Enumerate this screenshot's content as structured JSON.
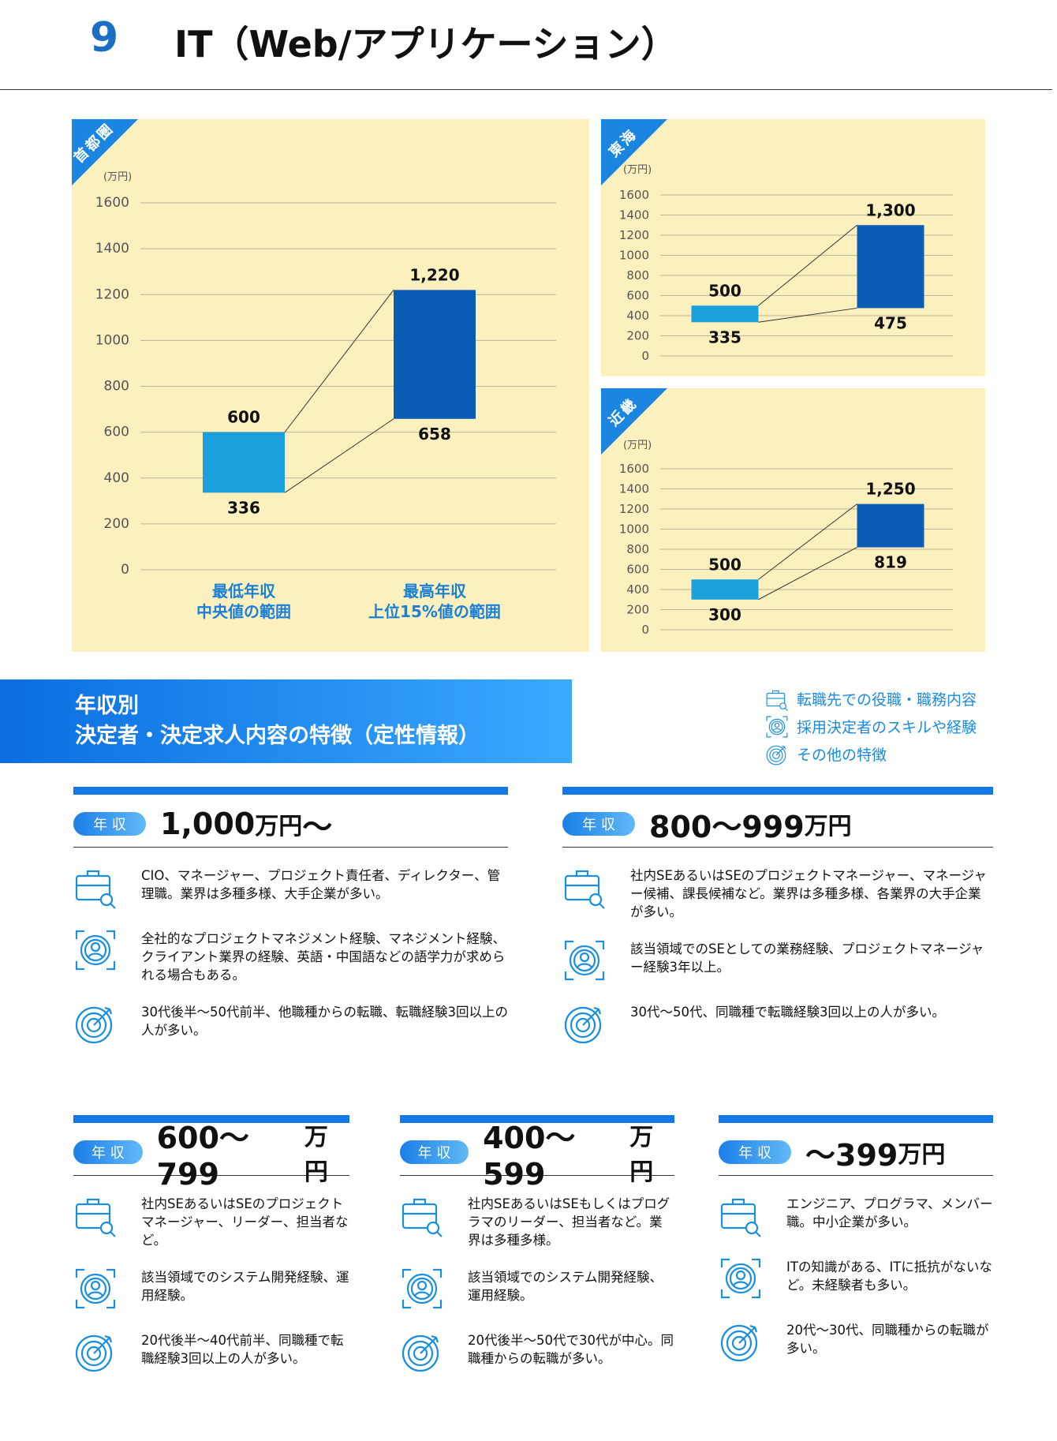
{
  "header": {
    "number": "9",
    "title": "IT（Web/アプリケーション）"
  },
  "chart_data": [
    {
      "type": "range-bar",
      "region": "首都圏",
      "y_unit": "(万円)",
      "categories": [
        "最低年収\n中央値の範囲",
        "最高年収\n上位15%値の範囲"
      ],
      "low": {
        "values": [
          336,
          658
        ]
      },
      "high": {
        "values": [
          600,
          1220
        ],
        "value_labels": [
          "600",
          "1,220"
        ]
      },
      "colors": [
        "#1aa0da",
        "#0b5cb5"
      ],
      "ylim": [
        0,
        1600
      ],
      "yticks": [
        0,
        200,
        400,
        600,
        800,
        1000,
        1200,
        1400,
        1600
      ],
      "grid": true
    },
    {
      "type": "range-bar",
      "region": "東海",
      "y_unit": "(万円)",
      "categories": [
        null,
        null
      ],
      "low": {
        "values": [
          335,
          475
        ]
      },
      "high": {
        "values": [
          500,
          1300
        ],
        "value_labels": [
          "500",
          "1,300"
        ]
      },
      "colors": [
        "#1aa0da",
        "#0b5cb5"
      ],
      "ylim": [
        0,
        1600
      ],
      "yticks": [
        0,
        200,
        400,
        600,
        800,
        1000,
        1200,
        1400,
        1600
      ],
      "grid": true
    },
    {
      "type": "range-bar",
      "region": "近畿",
      "y_unit": "(万円)",
      "categories": [
        null,
        null
      ],
      "low": {
        "values": [
          300,
          819
        ]
      },
      "high": {
        "values": [
          500,
          1250
        ],
        "value_labels": [
          "500",
          "1,250"
        ]
      },
      "colors": [
        "#1aa0da",
        "#0b5cb5"
      ],
      "ylim": [
        0,
        1600
      ],
      "yticks": [
        0,
        200,
        400,
        600,
        800,
        1000,
        1200,
        1400,
        1600
      ],
      "grid": true
    }
  ],
  "section": {
    "title_lines": [
      "年収別",
      "決定者・決定求人内容の特徴（定性情報）"
    ]
  },
  "legend": [
    "転職先での役職・職務内容",
    "採用決定者のスキルや経験",
    "その他の特徴"
  ],
  "groups": [
    {
      "badge": "年 収",
      "amount": "1,000",
      "unit": "万円",
      "suffix": "～",
      "items": [
        "CIO、マネージャー、プロジェクト責任者、ディレクター、管理職。業界は多種多様、大手企業が多い。",
        "全社的なプロジェクトマネジメント経験、マネジメント経験、クライアント業界の経験、英語・中国語などの語学力が求められる場合もある。",
        "30代後半～50代前半、他職種からの転職、転職経験3回以上の人が多い。"
      ]
    },
    {
      "badge": "年 収",
      "amount": "800～999",
      "unit": "万円",
      "items": [
        "社内SEあるいはSEのプロジェクトマネージャー、マネージャー候補、課長候補など。業界は多種多様、各業界の大手企業が多い。",
        "該当領域でのSEとしての業務経験、プロジェクトマネージャー経験3年以上。",
        "30代～50代、同職種で転職経験3回以上の人が多い。"
      ]
    },
    {
      "badge": "年 収",
      "amount": "600～799",
      "unit": "万円",
      "items": [
        "社内SEあるいはSEのプロジェクトマネージャー、リーダー、担当者など。",
        "該当領域でのシステム開発経験、運用経験。",
        "20代後半～40代前半、同職種で転職経験3回以上の人が多い。"
      ]
    },
    {
      "badge": "年 収",
      "amount": "400～599",
      "unit": "万円",
      "items": [
        "社内SEあるいはSEもしくはプログラマのリーダー、担当者など。業界は多種多様。",
        "該当領域でのシステム開発経験、運用経験。",
        "20代後半～50代で30代が中心。同職種からの転職が多い。"
      ]
    },
    {
      "badge": "年 収",
      "amount": "～399",
      "unit": "万円",
      "items": [
        "エンジニア、プログラマ、メンバー職。中小企業が多い。",
        "ITの知識がある、ITに抵抗がないなど。未経験者も多い。",
        "20代～30代、同職種からの転職が多い。"
      ]
    }
  ]
}
